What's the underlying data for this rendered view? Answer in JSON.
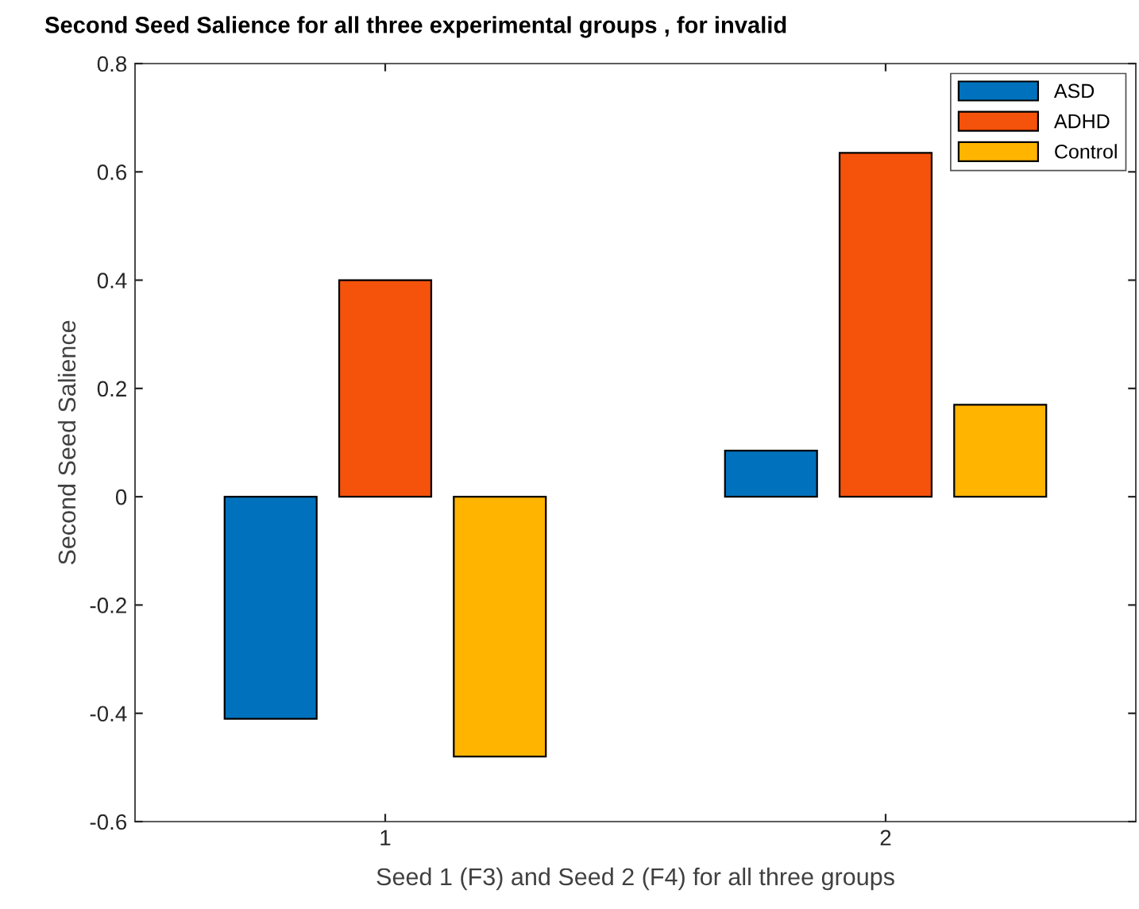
{
  "chart_data": {
    "type": "bar",
    "title": "Second Seed Salience for all three experimental groups , for invalid",
    "xlabel": "Seed 1 (F3) and Seed 2 (F4) for all three groups",
    "ylabel": "Second Seed Salience",
    "x": [
      1,
      2
    ],
    "series": [
      {
        "name": "ASD",
        "color": "#0072bd",
        "values": [
          -0.41,
          0.085
        ]
      },
      {
        "name": "ADHD",
        "color": "#f5520b",
        "values": [
          0.4,
          0.635
        ]
      },
      {
        "name": "Control",
        "color": "#ffb400",
        "values": [
          -0.48,
          0.17
        ]
      }
    ],
    "xlim": [
      0.5,
      2.5
    ],
    "xticks": [
      1,
      2
    ],
    "ylim": [
      -0.6,
      0.8
    ],
    "yticks": [
      -0.6,
      -0.4,
      -0.2,
      0,
      0.2,
      0.4,
      0.6,
      0.8
    ],
    "grid": false,
    "legend": "top right"
  }
}
